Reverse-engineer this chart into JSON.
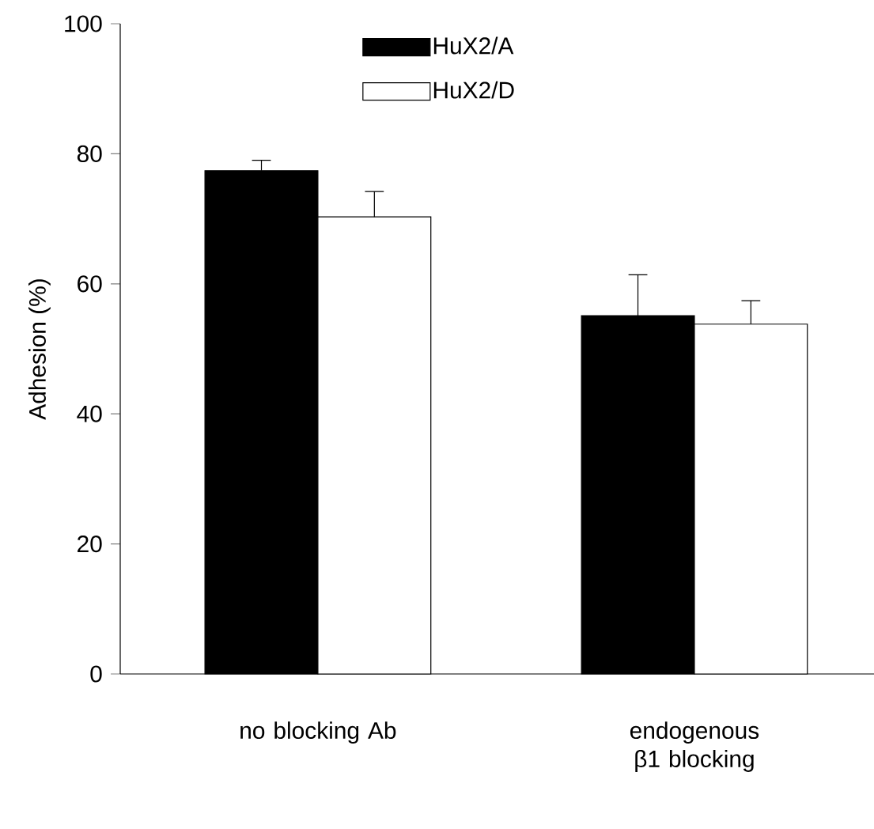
{
  "chart_data": {
    "type": "bar",
    "ylabel": "Adhesion (%)",
    "categories": [
      "no blocking Ab",
      "endogenous β1 blocking"
    ],
    "series": [
      {
        "name": "HuX2/A",
        "color": "#000000",
        "values": [
          77.4,
          55.1
        ],
        "errors": [
          [
            77.4,
            79.0
          ],
          [
            55.1,
            61.4
          ]
        ]
      },
      {
        "name": "HuX2/D",
        "color": "#ffffff",
        "values": [
          70.3,
          53.8
        ],
        "errors": [
          [
            70.3,
            74.2
          ],
          [
            53.8,
            57.4
          ]
        ]
      }
    ],
    "ylim": [
      0,
      100
    ],
    "yticks": [
      0,
      20,
      40,
      60,
      80,
      100
    ],
    "legend": "top"
  }
}
